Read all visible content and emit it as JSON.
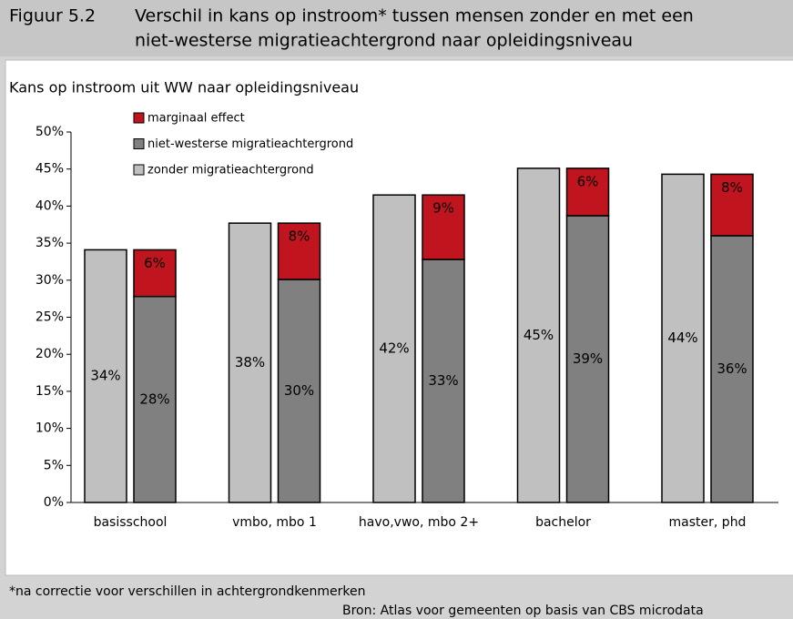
{
  "header": {
    "figure": "Figuur 5.2",
    "title": [
      "Verschil in kans op instroom* tussen mensen zonder en met een",
      "niet-westerse migratieachtergrond naar opleidingsniveau"
    ]
  },
  "chart_data": {
    "type": "bar",
    "title": "Kans op instroom uit WW naar opleidingsniveau",
    "categories": [
      "basisschool",
      "vmbo, mbo 1",
      "havo,vwo, mbo 2+",
      "bachelor",
      "master, phd"
    ],
    "series": [
      {
        "name": "zonder migratieachtergrond",
        "color": "#c0c0c0",
        "values": [
          34.1,
          37.7,
          41.5,
          45.1,
          44.3
        ],
        "value_labels": [
          "34%",
          "38%",
          "42%",
          "45%",
          "44%"
        ]
      },
      {
        "name": "niet-westerse migratieachtergrond",
        "color": "#808080",
        "values": [
          27.8,
          30.1,
          32.8,
          38.7,
          36.0
        ],
        "value_labels": [
          "28%",
          "30%",
          "33%",
          "39%",
          "36%"
        ]
      },
      {
        "name": "marginaal effect",
        "color": "#c0141e",
        "values": [
          6.3,
          7.6,
          8.7,
          6.4,
          8.3
        ],
        "value_labels": [
          "6%",
          "8%",
          "9%",
          "6%",
          "8%"
        ]
      }
    ],
    "ylim": [
      0,
      50
    ],
    "yticks": [
      {
        "value": 0,
        "label": "0%"
      },
      {
        "value": 5,
        "label": "5%"
      },
      {
        "value": 10,
        "label": "10%"
      },
      {
        "value": 15,
        "label": "15%"
      },
      {
        "value": 20,
        "label": "20%"
      },
      {
        "value": 25,
        "label": "25%"
      },
      {
        "value": 30,
        "label": "30%"
      },
      {
        "value": 35,
        "label": "35%"
      },
      {
        "value": 40,
        "label": "40%"
      },
      {
        "value": 45,
        "label": "45%"
      },
      {
        "value": 50,
        "label": "50%"
      }
    ],
    "grid": false,
    "legend": "top-left"
  },
  "footer": {
    "note": "*na correctie voor verschillen in achtergrondkenmerken",
    "source": "Bron: Atlas voor gemeenten op basis van CBS microdata"
  }
}
